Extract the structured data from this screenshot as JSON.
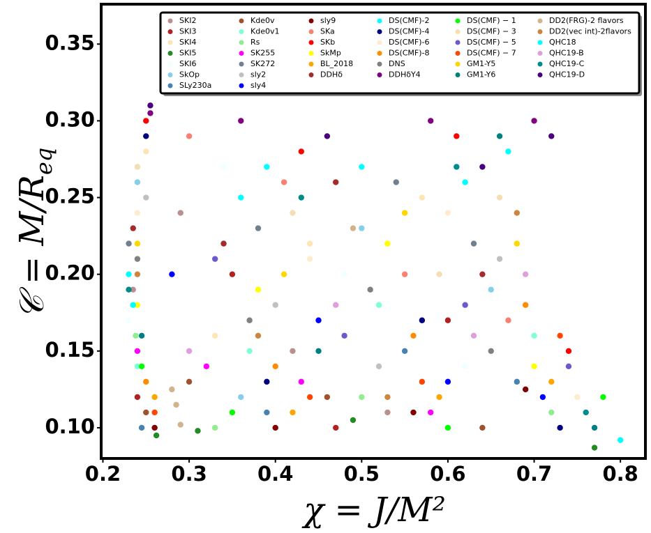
{
  "chart_data": {
    "type": "scatter",
    "xlabel": "χ = J/M²",
    "ylabel": {
      "text": "𝒞 = M/R",
      "subscript": "eq"
    },
    "xlim": [
      0.198,
      0.829
    ],
    "ylim": [
      0.08,
      0.376
    ],
    "xticks": [
      0.2,
      0.3,
      0.4,
      0.5,
      0.6,
      0.7,
      0.8
    ],
    "yticks": [
      {
        "value": 0.1,
        "label": "0.10"
      },
      0.15,
      {
        "value": 0.2,
        "label": "0.20"
      },
      0.25,
      {
        "value": 0.3,
        "label": "0.30"
      },
      0.35
    ],
    "legend_columns": [
      7,
      7,
      6,
      6,
      6,
      6
    ],
    "series": [
      {
        "name": "SKI2",
        "color": "#bc8f8f",
        "x": [
          0.235,
          0.29,
          0.42,
          0.53
        ],
        "y": [
          0.19,
          0.24,
          0.15,
          0.11
        ]
      },
      {
        "name": "SKI3",
        "color": "#b22222",
        "x": [
          0.24,
          0.35,
          0.47,
          0.6
        ],
        "y": [
          0.12,
          0.2,
          0.1,
          0.17
        ]
      },
      {
        "name": "SKI4",
        "color": "#ffe4b5",
        "x": [
          0.25,
          0.33,
          0.44,
          0.57
        ],
        "y": [
          0.28,
          0.16,
          0.22,
          0.25
        ]
      },
      {
        "name": "SKI5",
        "color": "#228b22",
        "x": [
          0.262,
          0.31,
          0.49,
          0.77
        ],
        "y": [
          0.095,
          0.098,
          0.105,
          0.087
        ]
      },
      {
        "name": "SKI6",
        "color": "#f0ffff",
        "x": [
          0.23,
          0.34,
          0.48,
          0.62
        ],
        "y": [
          0.17,
          0.27,
          0.2,
          0.14
        ]
      },
      {
        "name": "SkOp",
        "color": "#87ceeb",
        "x": [
          0.24,
          0.36,
          0.5,
          0.65
        ],
        "y": [
          0.26,
          0.12,
          0.23,
          0.19
        ]
      },
      {
        "name": "SLy230a",
        "color": "#4682b4",
        "x": [
          0.245,
          0.39,
          0.55,
          0.68
        ],
        "y": [
          0.1,
          0.11,
          0.15,
          0.13
        ]
      },
      {
        "name": "Kde0v",
        "color": "#a0522d",
        "x": [
          0.25,
          0.3,
          0.46,
          0.64
        ],
        "y": [
          0.11,
          0.13,
          0.12,
          0.1
        ]
      },
      {
        "name": "Kde0v1",
        "color": "#7fffd4",
        "x": [
          0.24,
          0.37,
          0.52,
          0.7
        ],
        "y": [
          0.14,
          0.15,
          0.18,
          0.16
        ]
      },
      {
        "name": "Rs",
        "color": "#90ee90",
        "x": [
          0.238,
          0.33,
          0.5,
          0.72
        ],
        "y": [
          0.16,
          0.1,
          0.12,
          0.11
        ]
      },
      {
        "name": "SK255",
        "color": "#ff00ff",
        "x": [
          0.24,
          0.32,
          0.43,
          0.58
        ],
        "y": [
          0.15,
          0.14,
          0.13,
          0.11
        ]
      },
      {
        "name": "SK272",
        "color": "#708090",
        "x": [
          0.23,
          0.38,
          0.54,
          0.63
        ],
        "y": [
          0.22,
          0.23,
          0.26,
          0.22
        ]
      },
      {
        "name": "sly2",
        "color": "#c0c0c0",
        "x": [
          0.25,
          0.4,
          0.52,
          0.66
        ],
        "y": [
          0.25,
          0.18,
          0.14,
          0.21
        ]
      },
      {
        "name": "sly4",
        "color": "#0000ff",
        "x": [
          0.28,
          0.45,
          0.6,
          0.71
        ],
        "y": [
          0.2,
          0.17,
          0.13,
          0.12
        ]
      },
      {
        "name": "sly9",
        "color": "#800000",
        "x": [
          0.26,
          0.4,
          0.56,
          0.69
        ],
        "y": [
          0.1,
          0.1,
          0.11,
          0.125
        ]
      },
      {
        "name": "SKa",
        "color": "#fa8072",
        "x": [
          0.3,
          0.41,
          0.55,
          0.67
        ],
        "y": [
          0.29,
          0.26,
          0.2,
          0.17
        ]
      },
      {
        "name": "SKb",
        "color": "#ff0000",
        "x": [
          0.25,
          0.43,
          0.61,
          0.74
        ],
        "y": [
          0.3,
          0.28,
          0.29,
          0.15
        ]
      },
      {
        "name": "SkMp",
        "color": "#ffff00",
        "x": [
          0.24,
          0.38,
          0.53,
          0.7
        ],
        "y": [
          0.18,
          0.19,
          0.22,
          0.14
        ]
      },
      {
        "name": "BL_2018",
        "color": "#ffa500",
        "x": [
          0.26,
          0.42,
          0.59,
          0.72
        ],
        "y": [
          0.12,
          0.11,
          0.12,
          0.13
        ]
      },
      {
        "name": "DDHδ",
        "color": "#a52a2a",
        "x": [
          0.235,
          0.34,
          0.47,
          0.64
        ],
        "y": [
          0.23,
          0.22,
          0.26,
          0.2
        ]
      },
      {
        "name": "DS(CMF)-2",
        "color": "#00ffff",
        "x": [
          0.23,
          0.36,
          0.5,
          0.67
        ],
        "y": [
          0.2,
          0.25,
          0.27,
          0.28
        ]
      },
      {
        "name": "DS(CMF)-4",
        "color": "#000080",
        "x": [
          0.25,
          0.39,
          0.57,
          0.73
        ],
        "y": [
          0.29,
          0.13,
          0.17,
          0.1
        ]
      },
      {
        "name": "DS(CMF)-6",
        "color": "#ffebcd",
        "x": [
          0.24,
          0.44,
          0.6,
          0.75
        ],
        "y": [
          0.24,
          0.21,
          0.24,
          0.12
        ]
      },
      {
        "name": "DS(CMF)-8",
        "color": "#ff8c00",
        "x": [
          0.25,
          0.4,
          0.56,
          0.69
        ],
        "y": [
          0.13,
          0.14,
          0.16,
          0.18
        ]
      },
      {
        "name": "DNS",
        "color": "#808080",
        "x": [
          0.24,
          0.37,
          0.51,
          0.65
        ],
        "y": [
          0.21,
          0.17,
          0.19,
          0.15
        ]
      },
      {
        "name": "DDHδY4",
        "color": "#800080",
        "x": [
          0.255,
          0.36,
          0.58,
          0.7
        ],
        "y": [
          0.305,
          0.3,
          0.3,
          0.3
        ]
      },
      {
        "name": "DS(CMF) − 1",
        "color": "#00ff00",
        "x": [
          0.245,
          0.35,
          0.6,
          0.78
        ],
        "y": [
          0.14,
          0.11,
          0.1,
          0.12
        ]
      },
      {
        "name": "DS(CMF) − 3",
        "color": "#f5deb3",
        "x": [
          0.24,
          0.42,
          0.59,
          0.66
        ],
        "y": [
          0.27,
          0.24,
          0.2,
          0.25
        ]
      },
      {
        "name": "DS(CMF) − 5",
        "color": "#6a5acd",
        "x": [
          0.33,
          0.48,
          0.62,
          0.74
        ],
        "y": [
          0.21,
          0.16,
          0.18,
          0.14
        ]
      },
      {
        "name": "DS(CMF) − 7",
        "color": "#ff4500",
        "x": [
          0.26,
          0.44,
          0.57,
          0.73
        ],
        "y": [
          0.11,
          0.12,
          0.13,
          0.16
        ]
      },
      {
        "name": "GM1-Y5",
        "color": "#ffd700",
        "x": [
          0.24,
          0.41,
          0.55,
          0.68
        ],
        "y": [
          0.22,
          0.2,
          0.24,
          0.22
        ]
      },
      {
        "name": "GM1-Y6",
        "color": "#008080",
        "x": [
          0.245,
          0.45,
          0.66,
          0.77
        ],
        "y": [
          0.16,
          0.15,
          0.29,
          0.1
        ]
      },
      {
        "name": "DD2(FRG)-2 flavors",
        "color": "#d2b48c",
        "x": [
          0.28,
          0.285,
          0.29,
          0.49
        ],
        "y": [
          0.125,
          0.115,
          0.102,
          0.23
        ]
      },
      {
        "name": "DD2(vec int)-2flavors",
        "color": "#cd853f",
        "x": [
          0.24,
          0.38,
          0.53,
          0.68
        ],
        "y": [
          0.2,
          0.16,
          0.12,
          0.24
        ]
      },
      {
        "name": "QHC18",
        "color": "#00ffff",
        "x": [
          0.235,
          0.39,
          0.62,
          0.8
        ],
        "y": [
          0.18,
          0.27,
          0.26,
          0.092
        ]
      },
      {
        "name": "QHC19-B",
        "color": "#dda0dd",
        "x": [
          0.3,
          0.47,
          0.63,
          0.69
        ],
        "y": [
          0.15,
          0.18,
          0.16,
          0.2
        ]
      },
      {
        "name": "QHC19-C",
        "color": "#008b8b",
        "x": [
          0.23,
          0.43,
          0.61,
          0.76
        ],
        "y": [
          0.19,
          0.25,
          0.27,
          0.11
        ]
      },
      {
        "name": "QHC19-D",
        "color": "#4b0082",
        "x": [
          0.255,
          0.46,
          0.64,
          0.72
        ],
        "y": [
          0.31,
          0.29,
          0.27,
          0.29
        ]
      }
    ]
  }
}
